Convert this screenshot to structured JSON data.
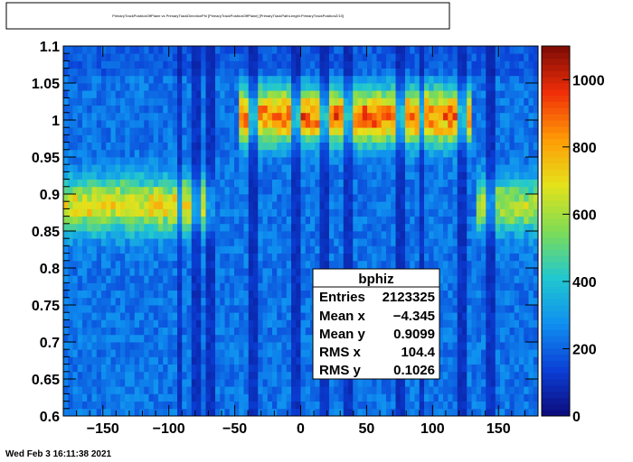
{
  "chart_data": {
    "type": "heatmap",
    "title": "PrimaryTrackPositionOffPlane vs PrimaryTrackDirectionPhi [PrimaryTrackPositionOffPlane] [PrimaryTrackPathLength:PrimaryTrackPositionZ/10]",
    "xlim": [
      -180,
      180
    ],
    "ylim": [
      0.6,
      1.1
    ],
    "zlim": [
      0,
      1100
    ],
    "x_ticks": [
      "−150",
      "−100",
      "−50",
      "0",
      "50",
      "100",
      "150"
    ],
    "x_tick_values": [
      -150,
      -100,
      -50,
      0,
      50,
      100,
      150
    ],
    "y_ticks": [
      "0.6",
      "0.65",
      "0.7",
      "0.75",
      "0.8",
      "0.85",
      "0.9",
      "0.95",
      "1",
      "1.05",
      "1.1"
    ],
    "y_tick_values": [
      0.6,
      0.65,
      0.7,
      0.75,
      0.8,
      0.85,
      0.9,
      0.95,
      1.0,
      1.05,
      1.1
    ],
    "z_ticks": [
      "0",
      "200",
      "400",
      "600",
      "800",
      "1000"
    ],
    "z_tick_values": [
      0,
      200,
      400,
      600,
      800,
      1000
    ],
    "colormap": [
      "#0c0a7a",
      "#0b3fd6",
      "#0f8ff0",
      "#21c8cf",
      "#7edc55",
      "#e4e21a",
      "#ff9a06",
      "#f02e08",
      "#7d0b06"
    ],
    "bands": [
      {
        "y": 0.885,
        "x": [
          -180,
          -65
        ],
        "peak": 720
      },
      {
        "y": 0.885,
        "x": [
          135,
          180
        ],
        "peak": 620
      },
      {
        "y": 1.005,
        "x": [
          -45,
          130
        ],
        "peak": 900
      }
    ],
    "background_level": 240,
    "gaps_x": [
      -92,
      -80,
      -68,
      -35,
      -5,
      17,
      35,
      75,
      92,
      123,
      143
    ],
    "stats": {
      "name": "bphiz",
      "entries_label": "Entries",
      "entries_value": "2123325",
      "meanx_label": "Mean x",
      "meanx_value": "−4.345",
      "meany_label": "Mean y",
      "meany_value": "0.9099",
      "rmsx_label": "RMS x",
      "rmsx_value": "104.4",
      "rmsy_label": "RMS y",
      "rmsy_value": "0.1026"
    },
    "date": "Wed Feb  3 16:11:38 2021"
  }
}
